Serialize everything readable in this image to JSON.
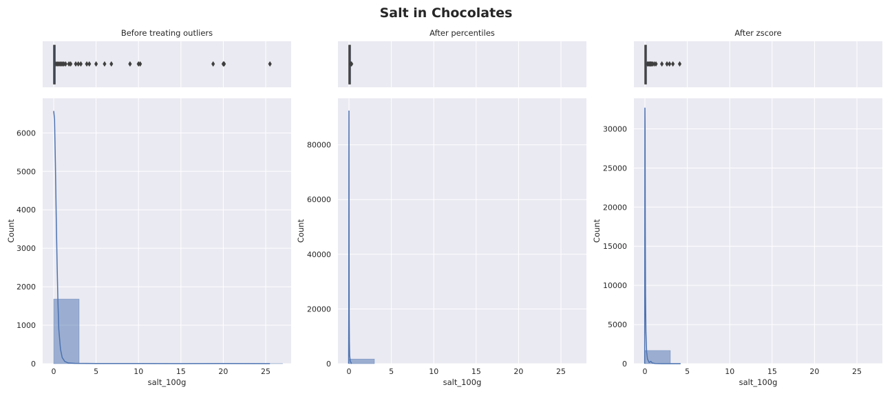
{
  "figure": {
    "title": "Salt in Chocolates",
    "colors": {
      "axes_bg": "#eaeaf2",
      "hist_fill": "#4c72b0",
      "kde_line": "#4c72b0",
      "box_line": "#3f3f3f",
      "text": "#262626"
    }
  },
  "chart_data": [
    {
      "type": "histogram",
      "title": "Before treating outliers",
      "xlabel": "salt_100g",
      "ylabel": "Count",
      "xlim": [
        -1.3,
        28
      ],
      "ylim": [
        0,
        6900
      ],
      "xticks": [
        0,
        5,
        10,
        15,
        20,
        25
      ],
      "yticks": [
        0,
        1000,
        2000,
        3000,
        4000,
        5000,
        6000
      ],
      "bins": [
        {
          "x0": 0,
          "x1": 3,
          "count": 1680
        },
        {
          "x0": 3,
          "x1": 6,
          "count": 8
        },
        {
          "x0": 6,
          "x1": 9,
          "count": 5
        },
        {
          "x0": 9,
          "x1": 12,
          "count": 6
        },
        {
          "x0": 12,
          "x1": 15,
          "count": 2
        },
        {
          "x0": 15,
          "x1": 18,
          "count": 2
        },
        {
          "x0": 18,
          "x1": 21,
          "count": 5
        },
        {
          "x0": 21,
          "x1": 24,
          "count": 2
        },
        {
          "x0": 24,
          "x1": 27,
          "count": 3
        }
      ],
      "kde": [
        [
          0,
          6570
        ],
        [
          0.1,
          6350
        ],
        [
          0.2,
          5200
        ],
        [
          0.3,
          3800
        ],
        [
          0.4,
          2600
        ],
        [
          0.5,
          1600
        ],
        [
          0.6,
          900
        ],
        [
          0.8,
          380
        ],
        [
          1.0,
          160
        ],
        [
          1.3,
          60
        ],
        [
          1.7,
          20
        ],
        [
          2.5,
          8
        ],
        [
          5,
          5
        ],
        [
          10,
          5
        ],
        [
          15,
          3
        ],
        [
          20,
          4
        ],
        [
          25.5,
          3
        ]
      ],
      "boxplot": {
        "q1": 0.0,
        "median": 0.02,
        "q3": 0.08,
        "whisker_low": 0.0,
        "whisker_high": 0.2,
        "outliers": [
          0.3,
          0.45,
          0.6,
          0.75,
          0.9,
          1.05,
          1.2,
          1.4,
          1.8,
          2.0,
          2.6,
          2.9,
          3.2,
          3.9,
          4.2,
          5.0,
          6.0,
          6.8,
          9.0,
          10.0,
          10.2,
          18.8,
          20.0,
          20.1,
          25.5
        ]
      }
    },
    {
      "type": "histogram",
      "title": "After percentiles",
      "xlabel": "salt_100g",
      "ylabel": "Count",
      "xlim": [
        -1.3,
        28
      ],
      "ylim": [
        0,
        97000
      ],
      "xticks": [
        0,
        5,
        10,
        15,
        20,
        25
      ],
      "yticks": [
        0,
        20000,
        40000,
        60000,
        80000
      ],
      "bins": [
        {
          "x0": 0,
          "x1": 3,
          "count": 1700
        }
      ],
      "kde": [
        [
          -0.04,
          0
        ],
        [
          -0.02,
          20000
        ],
        [
          -0.01,
          70000
        ],
        [
          0.0,
          92500
        ],
        [
          0.01,
          60000
        ],
        [
          0.02,
          30000
        ],
        [
          0.03,
          16000
        ],
        [
          0.05,
          8000
        ],
        [
          0.08,
          3000
        ],
        [
          0.15,
          1000
        ],
        [
          0.3,
          0
        ]
      ],
      "boxplot": {
        "q1": 0.0,
        "median": 0.01,
        "q3": 0.05,
        "whisker_low": 0.0,
        "whisker_high": 0.12,
        "outliers": [
          0.2,
          0.3
        ]
      }
    },
    {
      "type": "histogram",
      "title": "After zscore",
      "xlabel": "salt_100g",
      "ylabel": "Count",
      "xlim": [
        -1.3,
        28
      ],
      "ylim": [
        0,
        33900
      ],
      "xticks": [
        0,
        5,
        10,
        15,
        20,
        25
      ],
      "yticks": [
        0,
        5000,
        10000,
        15000,
        20000,
        25000,
        30000
      ],
      "bins": [
        {
          "x0": 0,
          "x1": 3,
          "count": 1680
        },
        {
          "x0": 3,
          "x1": 4.2,
          "count": 40
        }
      ],
      "kde": [
        [
          -0.03,
          0
        ],
        [
          -0.015,
          15000
        ],
        [
          0.0,
          32700
        ],
        [
          0.02,
          30000
        ],
        [
          0.04,
          18000
        ],
        [
          0.07,
          9000
        ],
        [
          0.12,
          4000
        ],
        [
          0.2,
          1500
        ],
        [
          0.3,
          600
        ],
        [
          0.5,
          150
        ],
        [
          0.7,
          300
        ],
        [
          0.85,
          100
        ],
        [
          1.2,
          20
        ],
        [
          2,
          5
        ],
        [
          4.2,
          0
        ]
      ],
      "boxplot": {
        "q1": 0.0,
        "median": 0.02,
        "q3": 0.08,
        "whisker_low": 0.0,
        "whisker_high": 0.2,
        "outliers": [
          0.3,
          0.4,
          0.5,
          0.6,
          0.7,
          0.8,
          0.9,
          1.1,
          1.3,
          2.0,
          2.6,
          2.9,
          3.3,
          4.1
        ]
      }
    }
  ]
}
